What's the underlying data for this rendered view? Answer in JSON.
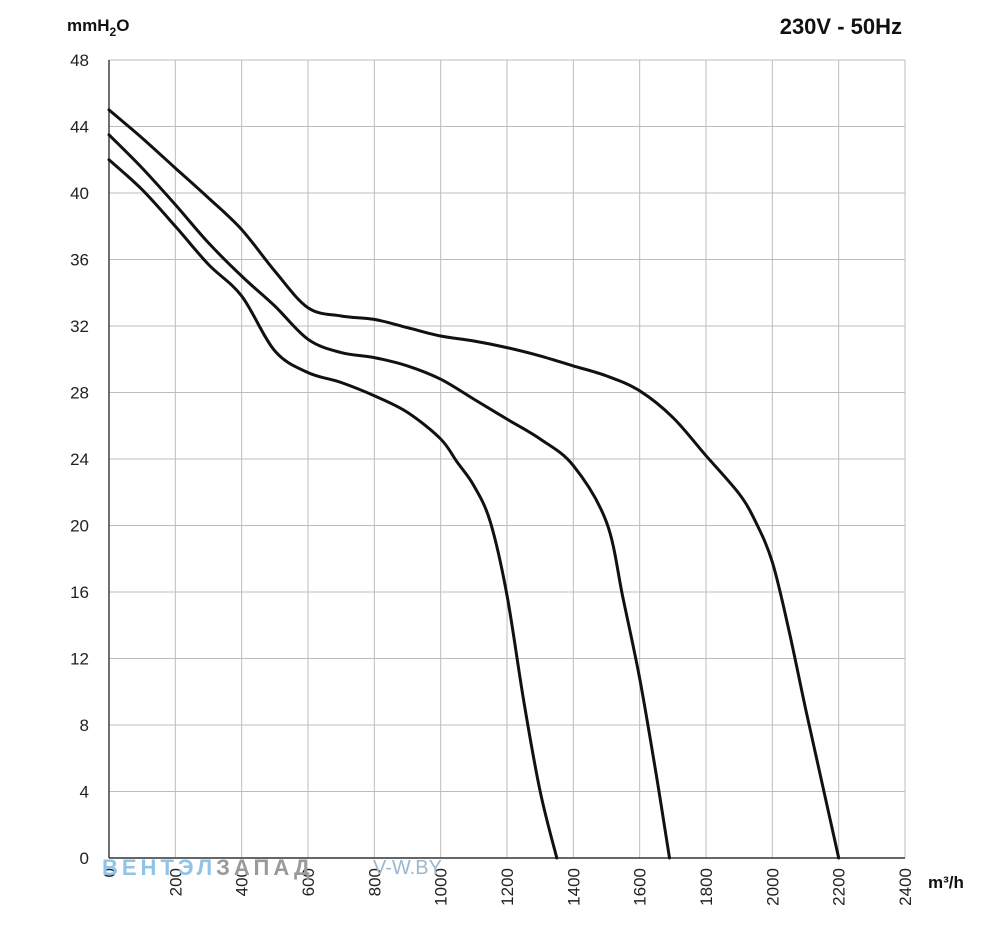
{
  "chart_data": {
    "type": "line",
    "title": "230V - 50Hz",
    "ylabel": "mmH",
    "ylabel_sub": "2",
    "ylabel_tail": "O",
    "xlabel": "m³/h",
    "xlim": [
      0,
      2400
    ],
    "ylim": [
      0,
      48
    ],
    "x_ticks": [
      "0",
      "200",
      "400",
      "600",
      "800",
      "1000",
      "1200",
      "1400",
      "1600",
      "1800",
      "2000",
      "2200",
      "2400"
    ],
    "y_ticks": [
      "0",
      "4",
      "8",
      "12",
      "16",
      "20",
      "24",
      "28",
      "32",
      "36",
      "40",
      "44",
      "48"
    ],
    "grid": true,
    "series": [
      {
        "x": [
          0,
          100,
          200,
          300,
          400,
          500,
          600,
          700,
          800,
          900,
          1000,
          1050,
          1100,
          1150,
          1200,
          1250,
          1300,
          1350
        ],
        "y": [
          42.0,
          40.2,
          38.0,
          35.7,
          33.8,
          30.5,
          29.2,
          28.6,
          27.8,
          26.8,
          25.2,
          23.8,
          22.4,
          20.2,
          15.8,
          9.5,
          4.0,
          0
        ]
      },
      {
        "x": [
          0,
          100,
          200,
          300,
          400,
          500,
          600,
          700,
          800,
          900,
          1000,
          1100,
          1200,
          1300,
          1400,
          1500,
          1550,
          1600,
          1650,
          1690
        ],
        "y": [
          43.5,
          41.5,
          39.3,
          37.0,
          35.0,
          33.2,
          31.2,
          30.4,
          30.1,
          29.6,
          28.8,
          27.6,
          26.4,
          25.2,
          23.6,
          20.2,
          15.6,
          10.8,
          5.0,
          0
        ]
      },
      {
        "x": [
          0,
          100,
          200,
          300,
          400,
          500,
          600,
          700,
          800,
          900,
          1000,
          1100,
          1200,
          1300,
          1400,
          1500,
          1600,
          1700,
          1800,
          1900,
          1950,
          2000,
          2050,
          2100,
          2150,
          2200
        ],
        "y": [
          45.0,
          43.3,
          41.5,
          39.7,
          37.8,
          35.3,
          33.1,
          32.6,
          32.4,
          31.9,
          31.4,
          31.1,
          30.7,
          30.2,
          29.6,
          29.0,
          28.1,
          26.5,
          24.2,
          21.9,
          20.2,
          17.8,
          13.7,
          9.0,
          4.5,
          0
        ]
      }
    ]
  },
  "watermark": {
    "part1": "ВЕНТЭЛ",
    "part2": "ЗАПАД",
    "site": "V-W.BY"
  },
  "colors": {
    "line": "#111111",
    "grid": "#bdbdbd",
    "axis": "#333333"
  }
}
